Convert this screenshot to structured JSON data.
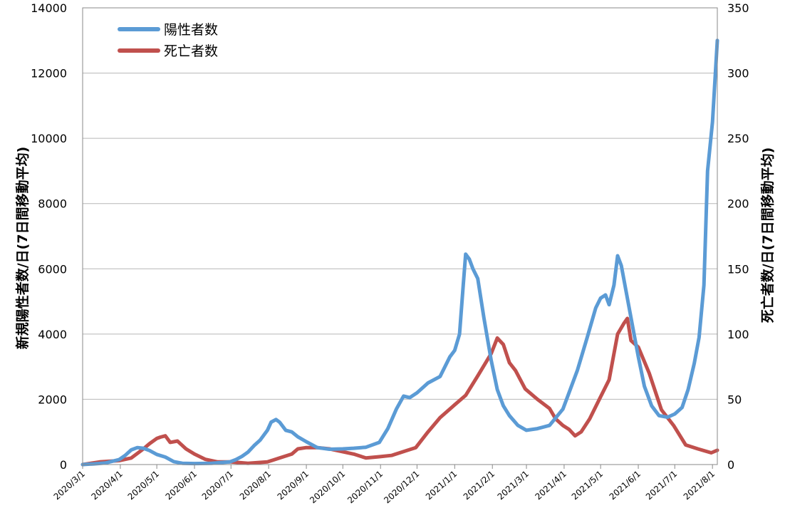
{
  "chart_data": {
    "type": "line",
    "title": "",
    "xlabel": "",
    "ylabel": "新規陽性者数/日(7日間移動平均)",
    "ylabel_right": "死亡者数/日(7日間移動平均)",
    "xlim": [
      "2020-03-01",
      "2021-08-05"
    ],
    "ylim": [
      0,
      14000
    ],
    "ylim_right": [
      0,
      350
    ],
    "yticks": [
      "0",
      "2000",
      "4000",
      "6000",
      "8000",
      "10000",
      "12000",
      "14000"
    ],
    "yticks_right": [
      "0",
      "50",
      "100",
      "150",
      "200",
      "250",
      "300",
      "350"
    ],
    "xticks": [
      "2020/3/1",
      "2020/4/1",
      "2020/5/1",
      "2020/6/1",
      "2020/7/1",
      "2020/8/1",
      "2020/9/1",
      "2020/10/1",
      "2020/11/1",
      "2020/12/1",
      "2021/1/1",
      "2021/2/1",
      "2021/3/1",
      "2021/4/1",
      "2021/5/1",
      "2021/6/1",
      "2021/7/1",
      "2021/8/1"
    ],
    "grid": true,
    "legend": "top-left",
    "series": [
      {
        "name": "陽性者数",
        "axis": "left",
        "color": "#5b9bd5",
        "points": [
          [
            "2020-03-01",
            0
          ],
          [
            "2020-03-10",
            20
          ],
          [
            "2020-03-20",
            50
          ],
          [
            "2020-03-31",
            150
          ],
          [
            "2020-04-05",
            280
          ],
          [
            "2020-04-10",
            450
          ],
          [
            "2020-04-15",
            520
          ],
          [
            "2020-04-20",
            500
          ],
          [
            "2020-04-25",
            430
          ],
          [
            "2020-05-01",
            310
          ],
          [
            "2020-05-08",
            230
          ],
          [
            "2020-05-15",
            90
          ],
          [
            "2020-05-22",
            40
          ],
          [
            "2020-06-01",
            30
          ],
          [
            "2020-06-15",
            40
          ],
          [
            "2020-06-30",
            80
          ],
          [
            "2020-07-05",
            150
          ],
          [
            "2020-07-10",
            250
          ],
          [
            "2020-07-15",
            380
          ],
          [
            "2020-07-20",
            580
          ],
          [
            "2020-07-25",
            750
          ],
          [
            "2020-07-31",
            1050
          ],
          [
            "2020-08-03",
            1300
          ],
          [
            "2020-08-07",
            1380
          ],
          [
            "2020-08-10",
            1300
          ],
          [
            "2020-08-15",
            1050
          ],
          [
            "2020-08-20",
            1000
          ],
          [
            "2020-08-25",
            850
          ],
          [
            "2020-09-01",
            700
          ],
          [
            "2020-09-10",
            520
          ],
          [
            "2020-09-20",
            470
          ],
          [
            "2020-10-01",
            480
          ],
          [
            "2020-10-10",
            500
          ],
          [
            "2020-10-20",
            530
          ],
          [
            "2020-10-31",
            680
          ],
          [
            "2020-11-07",
            1100
          ],
          [
            "2020-11-14",
            1700
          ],
          [
            "2020-11-20",
            2100
          ],
          [
            "2020-11-25",
            2050
          ],
          [
            "2020-12-01",
            2200
          ],
          [
            "2020-12-10",
            2500
          ],
          [
            "2020-12-20",
            2700
          ],
          [
            "2020-12-28",
            3300
          ],
          [
            "2021-01-01",
            3500
          ],
          [
            "2021-01-05",
            4000
          ],
          [
            "2021-01-08",
            5500
          ],
          [
            "2021-01-10",
            6450
          ],
          [
            "2021-01-13",
            6300
          ],
          [
            "2021-01-16",
            6000
          ],
          [
            "2021-01-20",
            5700
          ],
          [
            "2021-01-25",
            4500
          ],
          [
            "2021-01-31",
            3200
          ],
          [
            "2021-02-05",
            2300
          ],
          [
            "2021-02-10",
            1800
          ],
          [
            "2021-02-15",
            1500
          ],
          [
            "2021-02-22",
            1200
          ],
          [
            "2021-03-01",
            1050
          ],
          [
            "2021-03-10",
            1100
          ],
          [
            "2021-03-20",
            1200
          ],
          [
            "2021-03-31",
            1700
          ],
          [
            "2021-04-05",
            2200
          ],
          [
            "2021-04-12",
            2900
          ],
          [
            "2021-04-20",
            3900
          ],
          [
            "2021-04-27",
            4800
          ],
          [
            "2021-05-01",
            5100
          ],
          [
            "2021-05-05",
            5200
          ],
          [
            "2021-05-08",
            4900
          ],
          [
            "2021-05-12",
            5500
          ],
          [
            "2021-05-15",
            6400
          ],
          [
            "2021-05-18",
            6100
          ],
          [
            "2021-05-22",
            5300
          ],
          [
            "2021-05-27",
            4300
          ],
          [
            "2021-06-01",
            3300
          ],
          [
            "2021-06-06",
            2400
          ],
          [
            "2021-06-12",
            1800
          ],
          [
            "2021-06-18",
            1500
          ],
          [
            "2021-06-25",
            1450
          ],
          [
            "2021-07-01",
            1550
          ],
          [
            "2021-07-07",
            1750
          ],
          [
            "2021-07-12",
            2300
          ],
          [
            "2021-07-17",
            3100
          ],
          [
            "2021-07-21",
            3900
          ],
          [
            "2021-07-25",
            5500
          ],
          [
            "2021-07-28",
            9000
          ],
          [
            "2021-08-01",
            10500
          ],
          [
            "2021-08-05",
            13000
          ]
        ]
      },
      {
        "name": "死亡者数",
        "axis": "right",
        "color": "#c0504d",
        "points": [
          [
            "2020-03-01",
            0
          ],
          [
            "2020-03-15",
            2
          ],
          [
            "2020-03-31",
            3
          ],
          [
            "2020-04-10",
            5
          ],
          [
            "2020-04-20",
            12
          ],
          [
            "2020-04-25",
            16
          ],
          [
            "2020-05-01",
            20
          ],
          [
            "2020-05-04",
            21
          ],
          [
            "2020-05-08",
            22
          ],
          [
            "2020-05-12",
            17
          ],
          [
            "2020-05-18",
            18
          ],
          [
            "2020-05-25",
            12
          ],
          [
            "2020-06-01",
            8
          ],
          [
            "2020-06-10",
            4
          ],
          [
            "2020-06-20",
            2
          ],
          [
            "2020-07-01",
            2
          ],
          [
            "2020-07-15",
            1
          ],
          [
            "2020-07-31",
            2
          ],
          [
            "2020-08-10",
            5
          ],
          [
            "2020-08-20",
            8
          ],
          [
            "2020-08-25",
            12
          ],
          [
            "2020-09-01",
            13
          ],
          [
            "2020-09-10",
            13
          ],
          [
            "2020-09-20",
            12
          ],
          [
            "2020-09-30",
            10
          ],
          [
            "2020-10-10",
            8
          ],
          [
            "2020-10-20",
            5
          ],
          [
            "2020-10-31",
            6
          ],
          [
            "2020-11-10",
            7
          ],
          [
            "2020-11-20",
            10
          ],
          [
            "2020-11-30",
            13
          ],
          [
            "2020-12-10",
            25
          ],
          [
            "2020-12-20",
            36
          ],
          [
            "2020-12-31",
            45
          ],
          [
            "2021-01-10",
            53
          ],
          [
            "2021-01-20",
            68
          ],
          [
            "2021-01-31",
            85
          ],
          [
            "2021-02-05",
            97
          ],
          [
            "2021-02-10",
            92
          ],
          [
            "2021-02-15",
            78
          ],
          [
            "2021-02-20",
            72
          ],
          [
            "2021-02-28",
            58
          ],
          [
            "2021-03-10",
            50
          ],
          [
            "2021-03-20",
            43
          ],
          [
            "2021-03-25",
            35
          ],
          [
            "2021-03-31",
            30
          ],
          [
            "2021-04-05",
            27
          ],
          [
            "2021-04-10",
            22
          ],
          [
            "2021-04-15",
            25
          ],
          [
            "2021-04-22",
            35
          ],
          [
            "2021-04-30",
            50
          ],
          [
            "2021-05-08",
            65
          ],
          [
            "2021-05-12",
            85
          ],
          [
            "2021-05-15",
            100
          ],
          [
            "2021-05-20",
            108
          ],
          [
            "2021-05-23",
            112
          ],
          [
            "2021-05-26",
            95
          ],
          [
            "2021-06-01",
            90
          ],
          [
            "2021-06-10",
            70
          ],
          [
            "2021-06-20",
            42
          ],
          [
            "2021-06-30",
            30
          ],
          [
            "2021-07-10",
            15
          ],
          [
            "2021-07-20",
            12
          ],
          [
            "2021-07-31",
            9
          ],
          [
            "2021-08-05",
            11
          ]
        ]
      }
    ]
  }
}
